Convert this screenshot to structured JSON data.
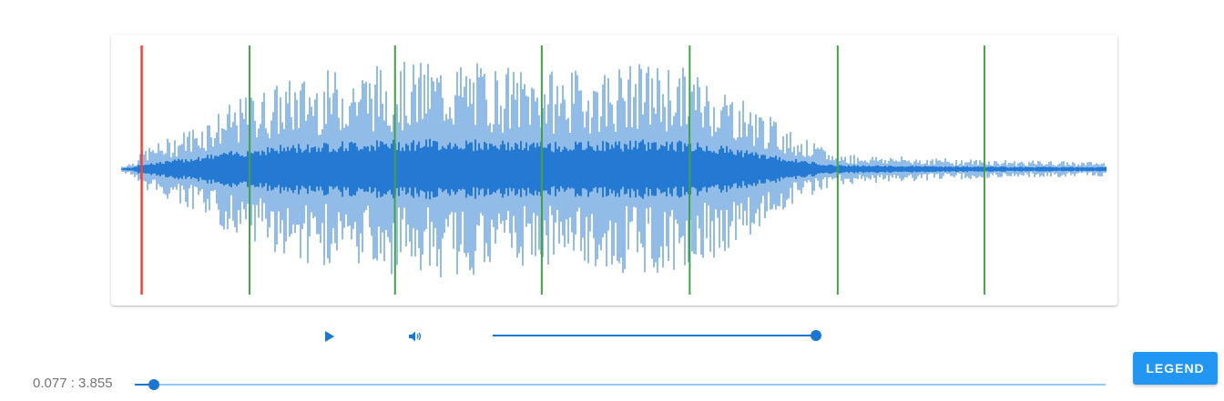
{
  "waveform": {
    "duration": 3.855,
    "current_time": 0.077,
    "playhead_time": 0.077,
    "markers": [
      0.5,
      1.07,
      1.645,
      2.225,
      2.805,
      3.38
    ],
    "colors": {
      "wave": "#4a90d9",
      "wave_dark": "#2479d3",
      "playhead": "#f44336",
      "marker": "#43a047"
    }
  },
  "controls": {
    "play_icon": "play-icon",
    "volume_icon": "volume-icon",
    "volume_level": 1.0
  },
  "position": {
    "label": "0.077 : 3.855",
    "fraction": 0.02
  },
  "legend_button": {
    "label": "LEGEND"
  }
}
